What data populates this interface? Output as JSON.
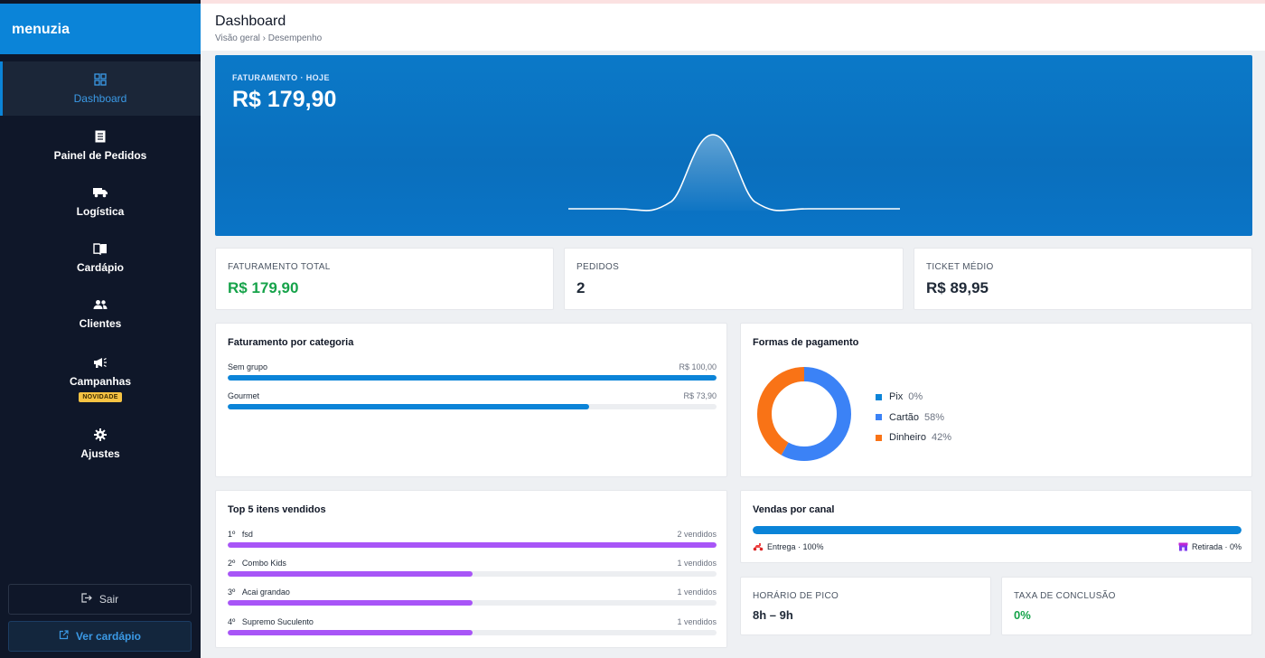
{
  "brand": "menuzia",
  "nav": [
    {
      "label": "Dashboard",
      "icon": "grid-icon",
      "active": true
    },
    {
      "label": "Painel de Pedidos",
      "icon": "receipt-icon"
    },
    {
      "label": "Logística",
      "icon": "truck-icon"
    },
    {
      "label": "Cardápio",
      "icon": "book-icon"
    },
    {
      "label": "Clientes",
      "icon": "users-icon"
    },
    {
      "label": "Campanhas",
      "icon": "megaphone-icon",
      "badge": "NOVIDADE"
    },
    {
      "label": "Ajustes",
      "icon": "gear-icon"
    }
  ],
  "sidebar_actions": {
    "exit_label": "Sair",
    "view_menu_label": "Ver cardápio"
  },
  "header": {
    "title": "Dashboard",
    "breadcrumb": "Visão geral › Desempenho"
  },
  "hero": {
    "label": "FATURAMENTO · HOJE",
    "value": "R$ 179,90"
  },
  "kpis": [
    {
      "label": "FATURAMENTO TOTAL",
      "value": "R$ 179,90"
    },
    {
      "label": "PEDIDOS",
      "value": "2"
    },
    {
      "label": "TICKET MÉDIO",
      "value": "R$ 89,95"
    }
  ],
  "categories": {
    "title": "Faturamento por categoria",
    "items": [
      {
        "name": "Sem grupo",
        "value_label": "R$ 100,00",
        "value": 100.0
      },
      {
        "name": "Gourmet",
        "value_label": "R$ 73,90",
        "value": 73.9
      }
    ]
  },
  "payments": {
    "title": "Formas de pagamento",
    "items": [
      {
        "name": "Pix",
        "pct_label": "0%",
        "pct": 0,
        "color": "#0b84d8"
      },
      {
        "name": "Cartão",
        "pct_label": "58%",
        "pct": 58,
        "color": "#3b82f6"
      },
      {
        "name": "Dinheiro",
        "pct_label": "42%",
        "pct": 42,
        "color": "#f97316"
      }
    ]
  },
  "top_items": {
    "title": "Top 5 itens vendidos",
    "items": [
      {
        "rank": "1º",
        "name": "fsd",
        "sold_label": "2 vendidos",
        "sold": 2
      },
      {
        "rank": "2º",
        "name": "Combo Kids",
        "sold_label": "1 vendidos",
        "sold": 1
      },
      {
        "rank": "3º",
        "name": "Acai grandao",
        "sold_label": "1 vendidos",
        "sold": 1
      },
      {
        "rank": "4º",
        "name": "Supremo Suculento",
        "sold_label": "1 vendidos",
        "sold": 1
      }
    ]
  },
  "channels": {
    "title": "Vendas por canal",
    "delivery_label": "Entrega · 100%",
    "pickup_label": "Retirada · 0%",
    "delivery_pct": 100
  },
  "peak": {
    "label": "HORÁRIO DE PICO",
    "value": "8h – 9h"
  },
  "completion": {
    "label": "TAXA DE CONCLUSÃO",
    "value": "0%"
  },
  "colors": {
    "accent": "#0b84d8",
    "purple": "#a855f7",
    "green": "#16a34a"
  }
}
